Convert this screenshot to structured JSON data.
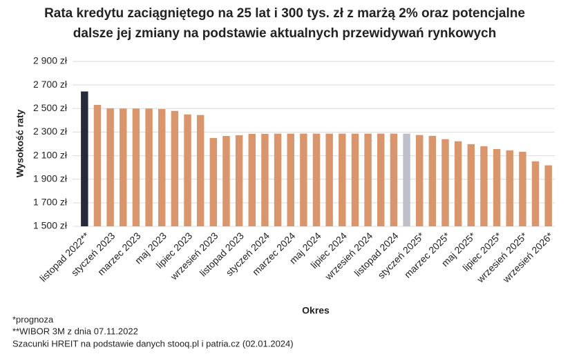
{
  "chart_data": {
    "type": "bar",
    "title": [
      "Rata kredytu zaciągniętego na 25 lat i 300 tys. zł z marżą 2% oraz potencjalne",
      "dalsze jej zmiany na podstawie aktualnych przewidywań rynkowych"
    ],
    "y_axis_label": "Wysokość raty",
    "x_axis_label": "Okres",
    "categories": [
      "listopad 2022**",
      null,
      "styczeń 2023",
      null,
      "marzec 2023",
      null,
      "maj 2023",
      null,
      "lipiec 2023",
      null,
      "wrzesień 2023",
      null,
      "listopad 2023",
      null,
      "styczeń 2024",
      null,
      "marzec 2024",
      null,
      "maj 2024",
      null,
      "lipiec 2024",
      null,
      "wrzesień 2024",
      null,
      "listopad 2024",
      null,
      "styczeń 2025*",
      null,
      "marzec 2025*",
      null,
      "maj 2025*",
      null,
      "lipiec 2025*",
      null,
      "wrzesień 2025*",
      null,
      "wrzesień 2026*"
    ],
    "values": [
      2645,
      2531,
      2502,
      2500,
      2500,
      2500,
      2496,
      2480,
      2450,
      2445,
      2250,
      2267,
      2273,
      2285,
      2285,
      2287,
      2287,
      2287,
      2287,
      2287,
      2287,
      2287,
      2287,
      2287,
      2287,
      2287,
      2275,
      2268,
      2240,
      2222,
      2198,
      2180,
      2156,
      2145,
      2133,
      2052,
      2018
    ],
    "colors": [
      "#262a3b",
      "#d9956b",
      "#d9956b",
      "#d9956b",
      "#d9956b",
      "#d9956b",
      "#d9956b",
      "#d9956b",
      "#d9956b",
      "#d9956b",
      "#d9956b",
      "#d9956b",
      "#d9956b",
      "#d9956b",
      "#d9956b",
      "#d9956b",
      "#d9956b",
      "#d9956b",
      "#d9956b",
      "#d9956b",
      "#d9956b",
      "#d9956b",
      "#d9956b",
      "#d9956b",
      "#d9956b",
      "#bfbfc9",
      "#d9956b",
      "#d9956b",
      "#d9956b",
      "#d9956b",
      "#d9956b",
      "#d9956b",
      "#d9956b",
      "#d9956b",
      "#d9956b",
      "#d9956b",
      "#d9956b"
    ],
    "ylim": [
      1500,
      2900
    ],
    "yticks": [
      {
        "value": 1500,
        "label": "1 500 zł"
      },
      {
        "value": 1700,
        "label": "1 700 zł"
      },
      {
        "value": 1900,
        "label": "1 900 zł"
      },
      {
        "value": 2100,
        "label": "2 100 zł"
      },
      {
        "value": 2300,
        "label": "2 300 zł"
      },
      {
        "value": 2500,
        "label": "2 500 zł"
      },
      {
        "value": 2700,
        "label": "2 700 zł"
      },
      {
        "value": 2900,
        "label": "2 900 zł"
      }
    ],
    "grid": true,
    "notes": [
      "*prognoza",
      "**WIBOR 3M z dnia 07.11.2022",
      "Szacunki HREIT na podstawie danych stooq.pl i patria.cz (02.01.2024)"
    ]
  }
}
